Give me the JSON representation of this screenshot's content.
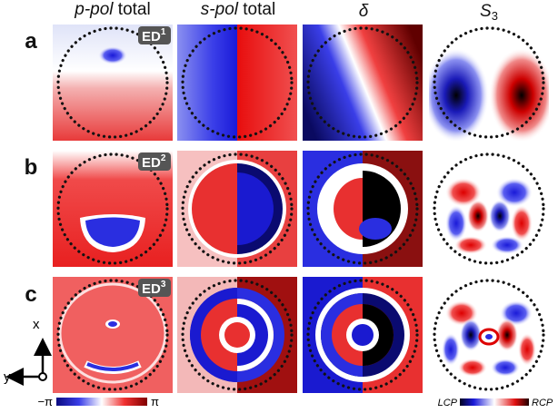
{
  "columns": [
    {
      "em": "p-pol",
      "rest": "total"
    },
    {
      "em": "s-pol",
      "rest": "total"
    },
    {
      "em": "δ"
    },
    {
      "em": "S",
      "sub": "3"
    }
  ],
  "rows": [
    {
      "label": "a",
      "badge": {
        "text": "ED",
        "sup": "1"
      }
    },
    {
      "label": "b",
      "badge": {
        "text": "ED",
        "sup": "2"
      }
    },
    {
      "label": "c",
      "badge": {
        "text": "ED",
        "sup": "3"
      }
    }
  ],
  "axes": {
    "x": "x",
    "y": "y"
  },
  "colorbars": [
    {
      "min": "−π",
      "max": "π"
    },
    {
      "min": "LCP",
      "max": "RCP"
    }
  ]
}
